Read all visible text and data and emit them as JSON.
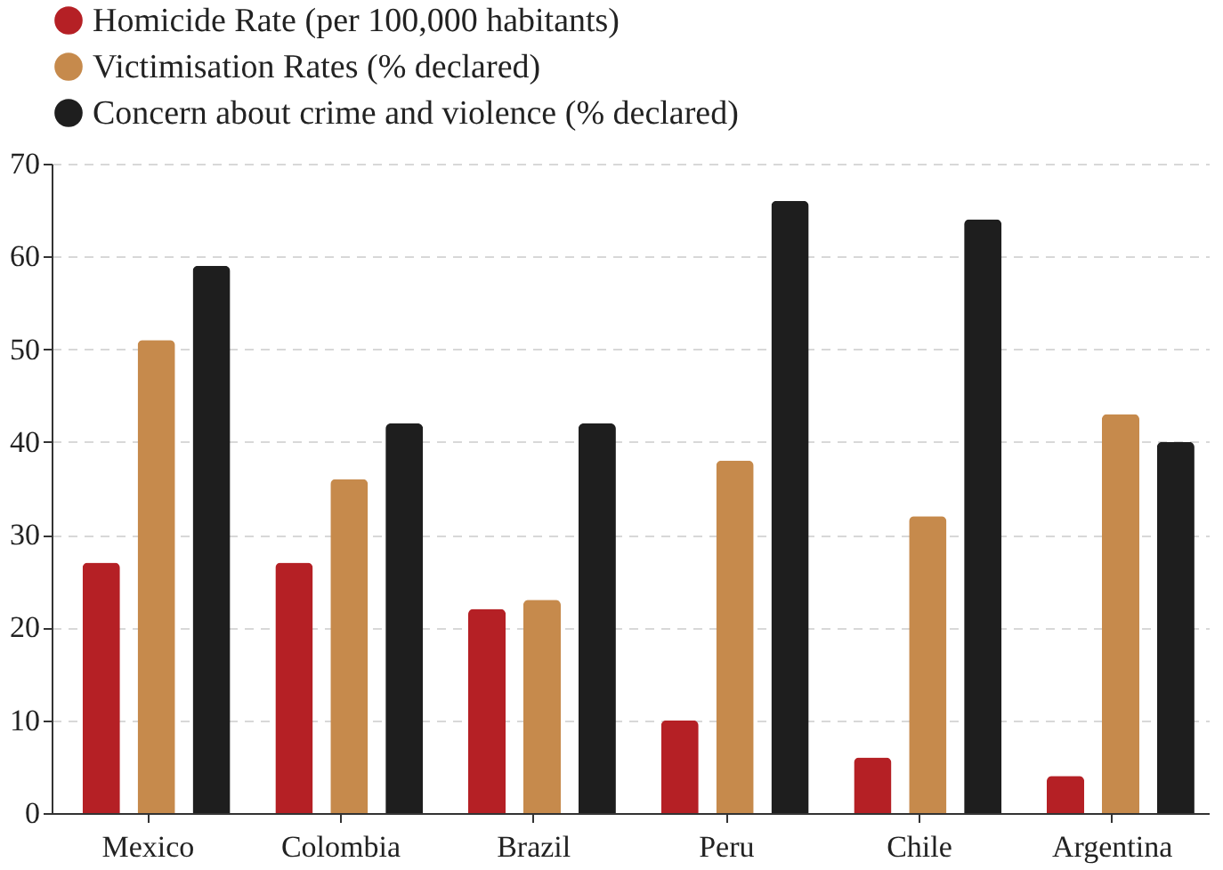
{
  "chart_data": {
    "type": "bar",
    "categories": [
      "Mexico",
      "Colombia",
      "Brazil",
      "Peru",
      "Chile",
      "Argentina"
    ],
    "series": [
      {
        "name": "Homicide Rate (per 100,000 habitants)",
        "color": "#b52025",
        "values": [
          27,
          27,
          22,
          10,
          6,
          4
        ]
      },
      {
        "name": "Victimisation Rates (% declared)",
        "color": "#c68a4c",
        "values": [
          51,
          36,
          23,
          38,
          32,
          43
        ]
      },
      {
        "name": "Concern about crime and violence (% declared)",
        "color": "#1e1e1e",
        "values": [
          59,
          42,
          42,
          66,
          64,
          40
        ]
      }
    ],
    "ylim": [
      0,
      70
    ],
    "yticks": [
      0,
      10,
      20,
      30,
      40,
      50,
      60,
      70
    ],
    "grid": "y",
    "legend": "top"
  }
}
